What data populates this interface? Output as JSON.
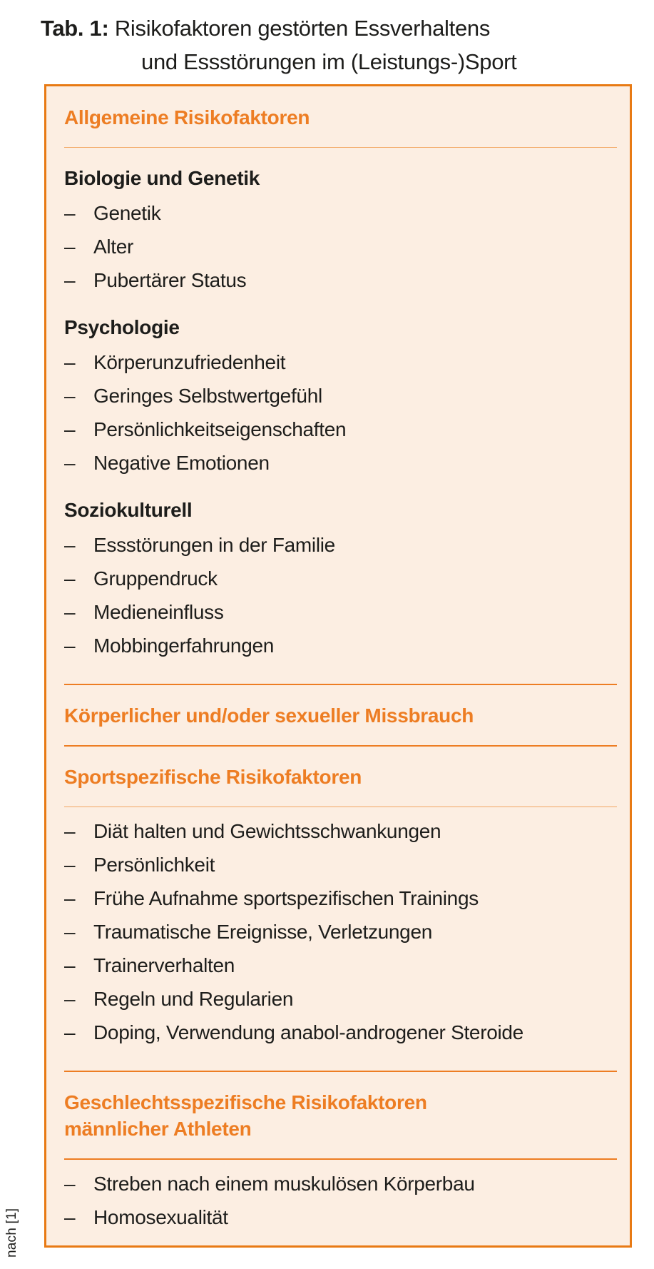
{
  "caption": {
    "label": "Tab. 1:",
    "line1": "Risikofaktoren gestörten Essverhaltens",
    "line2": "und Essstörungen im (Leistungs-)Sport"
  },
  "bullet": "–",
  "source_note": "nach [1]",
  "colors": {
    "accent_orange": "#ed7d23",
    "border_orange": "#e87a14",
    "box_background": "#fceee2",
    "body_text": "#1d1d1b"
  },
  "table": {
    "sections": [
      {
        "heading": "Allgemeine Risikofaktoren",
        "groups": [
          {
            "subheading": "Biologie und Genetik",
            "items": [
              "Genetik",
              "Alter",
              "Pubertärer Status"
            ]
          },
          {
            "subheading": "Psychologie",
            "items": [
              "Körperunzufriedenheit",
              "Geringes Selbstwertgefühl",
              "Persönlichkeitseigenschaften",
              "Negative Emotionen"
            ]
          },
          {
            "subheading": "Soziokulturell",
            "items": [
              "Essstörungen in der Familie",
              "Gruppendruck",
              "Medieneinfluss",
              "Mobbingerfahrungen"
            ]
          }
        ]
      },
      {
        "heading": "Körperlicher und/oder sexueller Missbrauch",
        "groups": []
      },
      {
        "heading": "Sportspezifische Risikofaktoren",
        "groups": [
          {
            "subheading": "",
            "items": [
              "Diät halten und Gewichtsschwankungen",
              "Persönlichkeit",
              "Frühe Aufnahme sportspezifischen Trainings",
              "Traumatische Ereignisse, Verletzungen",
              "Trainerverhalten",
              "Regeln und Regularien",
              "Doping, Verwendung anabol-androgener Steroide"
            ]
          }
        ]
      },
      {
        "heading_lines": [
          "Geschlechtsspezifische Risikofaktoren",
          "männlicher Athleten"
        ],
        "groups": [
          {
            "subheading": "",
            "items": [
              "Streben nach einem muskulösen Körperbau",
              "Homosexualität"
            ]
          }
        ]
      }
    ]
  }
}
